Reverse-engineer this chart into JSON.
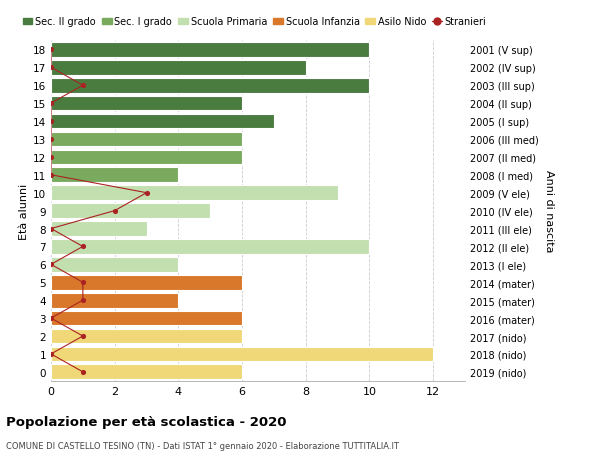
{
  "ages": [
    18,
    17,
    16,
    15,
    14,
    13,
    12,
    11,
    10,
    9,
    8,
    7,
    6,
    5,
    4,
    3,
    2,
    1,
    0
  ],
  "years": [
    "2001 (V sup)",
    "2002 (IV sup)",
    "2003 (III sup)",
    "2004 (II sup)",
    "2005 (I sup)",
    "2006 (III med)",
    "2007 (II med)",
    "2008 (I med)",
    "2009 (V ele)",
    "2010 (IV ele)",
    "2011 (III ele)",
    "2012 (II ele)",
    "2013 (I ele)",
    "2014 (mater)",
    "2015 (mater)",
    "2016 (mater)",
    "2017 (nido)",
    "2018 (nido)",
    "2019 (nido)"
  ],
  "bar_values": [
    10,
    8,
    10,
    6,
    7,
    6,
    6,
    4,
    9,
    5,
    3,
    10,
    4,
    6,
    4,
    6,
    6,
    12,
    6
  ],
  "bar_colors": [
    "#4a7c40",
    "#4a7c40",
    "#4a7c40",
    "#4a7c40",
    "#4a7c40",
    "#7aaa5e",
    "#7aaa5e",
    "#7aaa5e",
    "#c2dfaf",
    "#c2dfaf",
    "#c2dfaf",
    "#c2dfaf",
    "#c2dfaf",
    "#d9782a",
    "#d9782a",
    "#d9782a",
    "#f0d878",
    "#f0d878",
    "#f0d878"
  ],
  "stranieri_x": [
    0,
    0,
    1,
    0,
    0,
    0,
    0,
    0,
    3,
    2,
    0,
    1,
    0,
    1,
    1,
    0,
    1,
    0,
    1
  ],
  "stranieri_color": "#aa2222",
  "legend_labels": [
    "Sec. II grado",
    "Sec. I grado",
    "Scuola Primaria",
    "Scuola Infanzia",
    "Asilo Nido",
    "Stranieri"
  ],
  "legend_colors": [
    "#4a7c40",
    "#7aaa5e",
    "#c2dfaf",
    "#d9782a",
    "#f0d878",
    "#aa2222"
  ],
  "title": "Popolazione per età scolastica - 2020",
  "subtitle": "COMUNE DI CASTELLO TESINO (TN) - Dati ISTAT 1° gennaio 2020 - Elaborazione TUTTITALIA.IT",
  "ylabel_left": "Età alunni",
  "ylabel_right": "Anni di nascita",
  "xlim": [
    0,
    13
  ],
  "xticks": [
    0,
    2,
    4,
    6,
    8,
    10,
    12
  ],
  "background_color": "#ffffff",
  "grid_color": "#cccccc",
  "bar_height": 0.82
}
